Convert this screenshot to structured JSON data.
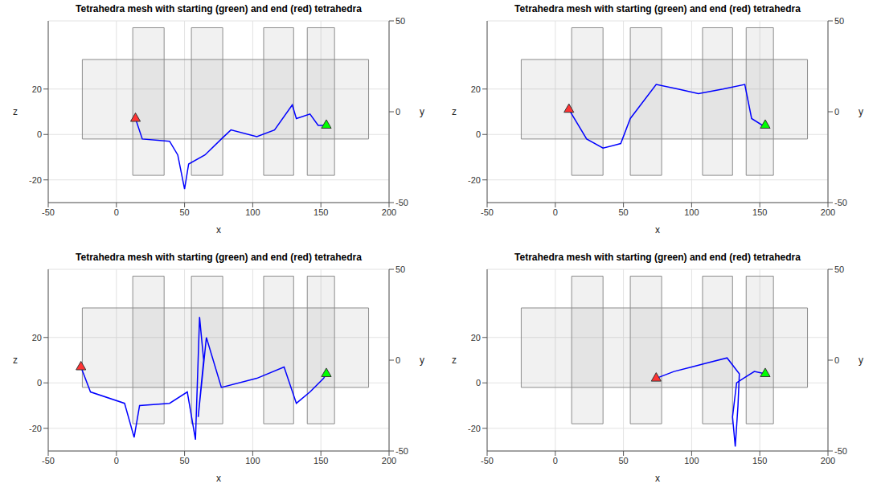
{
  "chart_data": [
    {
      "type": "line",
      "title": "Tetrahedra mesh with starting (green) and end (red) tetrahedra",
      "xlabel": "x",
      "ylabel": "z",
      "y2label": "y",
      "xlim": [
        -50,
        200
      ],
      "xticks": [
        -50,
        0,
        50,
        100,
        150,
        200
      ],
      "ylim": [
        -30,
        50
      ],
      "yticks": [
        -20,
        0,
        20
      ],
      "y2lim": [
        -50,
        50
      ],
      "y2ticks": [
        -50,
        0,
        50
      ],
      "grid": true,
      "mesh": {
        "color": "#8c8c8c",
        "regions": [
          {
            "x": [
              -25,
              185
            ],
            "z": [
              -2,
              33
            ]
          },
          {
            "x": [
              12,
              35
            ],
            "z": [
              -18,
              47
            ]
          },
          {
            "x": [
              55,
              78
            ],
            "z": [
              -18,
              47
            ]
          },
          {
            "x": [
              108,
              130
            ],
            "z": [
              -18,
              47
            ]
          },
          {
            "x": [
              140,
              160
            ],
            "z": [
              -18,
              47
            ]
          }
        ]
      },
      "series": [
        {
          "color": "#0000ff",
          "x": [
            14,
            19,
            39,
            45,
            48,
            50,
            53,
            65,
            77,
            84,
            103,
            116,
            129,
            132,
            142,
            148,
            154
          ],
          "values": [
            7,
            -2,
            -3,
            -9,
            -18,
            -24,
            -13,
            -9,
            -2,
            2,
            -1,
            2,
            13,
            7,
            9,
            4,
            4
          ]
        }
      ],
      "start": {
        "x": 154,
        "z": 4,
        "color": "#00ff00",
        "marker": "triangle"
      },
      "end": {
        "x": 14,
        "z": 7,
        "color": "#ff3333",
        "marker": "triangle"
      }
    },
    {
      "type": "line",
      "title": "Tetrahedra mesh with starting (green) and end (red) tetrahedra",
      "xlabel": "x",
      "ylabel": "z",
      "y2label": "y",
      "xlim": [
        -50,
        200
      ],
      "xticks": [
        -50,
        0,
        50,
        100,
        150,
        200
      ],
      "ylim": [
        -30,
        50
      ],
      "yticks": [
        -20,
        0,
        20
      ],
      "y2lim": [
        -50,
        50
      ],
      "y2ticks": [
        -50,
        0,
        50
      ],
      "grid": true,
      "mesh": {
        "color": "#8c8c8c",
        "regions": [
          {
            "x": [
              -25,
              185
            ],
            "z": [
              -2,
              33
            ]
          },
          {
            "x": [
              12,
              35
            ],
            "z": [
              -18,
              47
            ]
          },
          {
            "x": [
              55,
              78
            ],
            "z": [
              -18,
              47
            ]
          },
          {
            "x": [
              108,
              130
            ],
            "z": [
              -18,
              47
            ]
          },
          {
            "x": [
              140,
              160
            ],
            "z": [
              -18,
              47
            ]
          }
        ]
      },
      "series": [
        {
          "color": "#0000ff",
          "x": [
            10,
            23,
            35,
            48,
            55,
            74,
            90,
            105,
            123,
            139,
            144,
            152,
            154
          ],
          "values": [
            11,
            -2,
            -6,
            -4,
            7,
            22,
            20,
            18,
            20,
            22,
            7,
            4,
            4
          ]
        }
      ],
      "start": {
        "x": 154,
        "z": 4,
        "color": "#00ff00",
        "marker": "triangle"
      },
      "end": {
        "x": 10,
        "z": 11,
        "color": "#ff3333",
        "marker": "triangle"
      }
    },
    {
      "type": "line",
      "title": "Tetrahedra mesh with starting (green) and end (red) tetrahedra",
      "xlabel": "x",
      "ylabel": "z",
      "y2label": "y",
      "xlim": [
        -50,
        200
      ],
      "xticks": [
        -50,
        0,
        50,
        100,
        150,
        200
      ],
      "ylim": [
        -30,
        50
      ],
      "yticks": [
        -20,
        0,
        20
      ],
      "y2lim": [
        -50,
        50
      ],
      "y2ticks": [
        -50,
        0,
        50
      ],
      "grid": true,
      "mesh": {
        "color": "#8c8c8c",
        "regions": [
          {
            "x": [
              -25,
              185
            ],
            "z": [
              -2,
              33
            ]
          },
          {
            "x": [
              12,
              35
            ],
            "z": [
              -18,
              47
            ]
          },
          {
            "x": [
              55,
              78
            ],
            "z": [
              -18,
              47
            ]
          },
          {
            "x": [
              108,
              130
            ],
            "z": [
              -18,
              47
            ]
          },
          {
            "x": [
              140,
              160
            ],
            "z": [
              -18,
              47
            ]
          }
        ]
      },
      "series": [
        {
          "color": "#0000ff",
          "x": [
            -26,
            -19,
            6,
            13,
            17,
            39,
            52,
            58,
            61,
            64,
            60,
            66,
            77,
            103,
            123,
            132,
            142,
            152,
            154
          ],
          "values": [
            7,
            -4,
            -9,
            -24,
            -10,
            -9,
            -4,
            -25,
            29,
            10,
            -15,
            20,
            -2,
            2,
            7,
            -9,
            -4,
            2,
            4
          ]
        }
      ],
      "start": {
        "x": 154,
        "z": 4,
        "color": "#00ff00",
        "marker": "triangle"
      },
      "end": {
        "x": -26,
        "z": 7,
        "color": "#ff3333",
        "marker": "triangle"
      }
    },
    {
      "type": "line",
      "title": "Tetrahedra mesh with starting (green) and end (red) tetrahedra",
      "xlabel": "x",
      "ylabel": "z",
      "y2label": "y",
      "xlim": [
        -50,
        200
      ],
      "xticks": [
        -50,
        0,
        50,
        100,
        150,
        200
      ],
      "ylim": [
        -30,
        50
      ],
      "yticks": [
        -20,
        0,
        20
      ],
      "y2lim": [
        -50,
        50
      ],
      "y2ticks": [
        -50,
        0,
        50
      ],
      "grid": true,
      "mesh": {
        "color": "#8c8c8c",
        "regions": [
          {
            "x": [
              -25,
              185
            ],
            "z": [
              -2,
              33
            ]
          },
          {
            "x": [
              12,
              35
            ],
            "z": [
              -18,
              47
            ]
          },
          {
            "x": [
              55,
              78
            ],
            "z": [
              -18,
              47
            ]
          },
          {
            "x": [
              108,
              130
            ],
            "z": [
              -18,
              47
            ]
          },
          {
            "x": [
              140,
              160
            ],
            "z": [
              -18,
              47
            ]
          }
        ]
      },
      "series": [
        {
          "color": "#0000ff",
          "x": [
            74,
            87,
            100,
            113,
            126,
            135,
            134,
            132,
            130,
            133,
            138,
            146,
            154
          ],
          "values": [
            2,
            5,
            7,
            9,
            11,
            4,
            -10,
            -28,
            -15,
            0,
            2,
            5,
            4
          ]
        }
      ],
      "start": {
        "x": 154,
        "z": 4,
        "color": "#00ff00",
        "marker": "triangle"
      },
      "end": {
        "x": 74,
        "z": 2,
        "color": "#ff3333",
        "marker": "triangle"
      }
    }
  ]
}
